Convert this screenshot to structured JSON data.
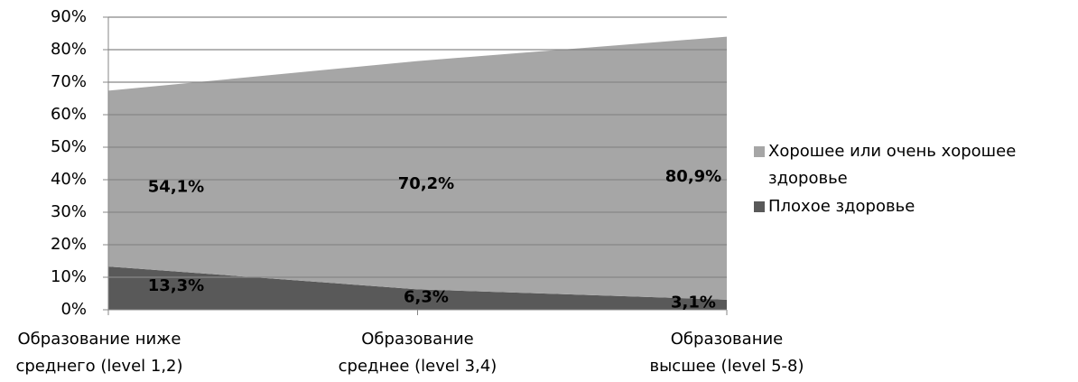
{
  "chart_data": {
    "type": "stacked_area",
    "categories": [
      "Образование ниже\nсреднего (level 1,2)",
      "Образование\nсреднее (level 3,4)",
      "Образование\nвысшее (level 5-8)"
    ],
    "series": [
      {
        "name": "Плохое здоровье",
        "color": "#595959",
        "values": [
          13.3,
          6.3,
          3.1
        ],
        "value_labels": [
          "13,3%",
          "6,3%",
          "3,1%"
        ]
      },
      {
        "name": "Хорошее или очень хорошее здоровье",
        "color": "#a6a6a6",
        "values": [
          54.1,
          70.2,
          80.9
        ],
        "value_labels": [
          "54,1%",
          "70,2%",
          "80,9%"
        ]
      }
    ],
    "ylim": [
      0,
      90
    ],
    "yticks": [
      {
        "value": 0,
        "label": "0%"
      },
      {
        "value": 10,
        "label": "10%"
      },
      {
        "value": 20,
        "label": "20%"
      },
      {
        "value": 30,
        "label": "30%"
      },
      {
        "value": 40,
        "label": "40%"
      },
      {
        "value": 50,
        "label": "50%"
      },
      {
        "value": 60,
        "label": "60%"
      },
      {
        "value": 70,
        "label": "70%"
      },
      {
        "value": 80,
        "label": "80%"
      },
      {
        "value": 90,
        "label": "90%"
      }
    ],
    "grid": true,
    "legend": "right"
  }
}
